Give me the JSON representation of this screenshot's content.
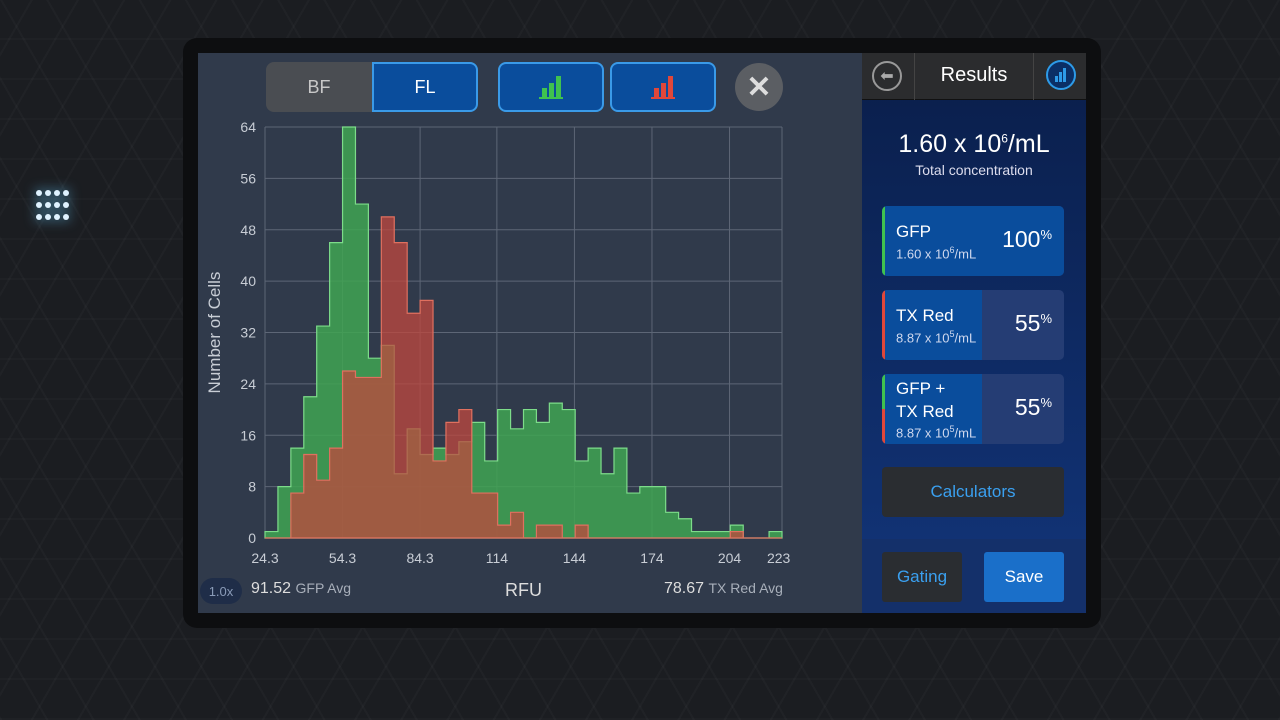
{
  "toolbar": {
    "bf_label": "BF",
    "fl_label": "FL",
    "gfp_hist_icon": "bar-chart-icon",
    "gfp_hist_color": "#3fc24f",
    "red_hist_icon": "bar-chart-icon",
    "red_hist_color": "#e0473a",
    "close_icon": "close-icon"
  },
  "footer": {
    "zoom": "1.0x",
    "gfp_avg_value": "91.52",
    "gfp_avg_label": "GFP Avg",
    "xlabel": "RFU",
    "red_avg_value": "78.67",
    "red_avg_label": "TX Red Avg"
  },
  "panel": {
    "title": "Results",
    "total_main": "1.60 x 10",
    "total_exp": "6",
    "total_unit": "/mL",
    "total_label": "Total concentration",
    "cards": [
      {
        "name": "GFP",
        "conc": "1.60 x 10",
        "exp": "6",
        "unit": "/mL",
        "pct": "100",
        "pct_sign": "%",
        "fraction": 1.0,
        "color": "#3fc24f"
      },
      {
        "name": "TX Red",
        "conc": "8.87 x 10",
        "exp": "5",
        "unit": "/mL",
        "pct": "55",
        "pct_sign": "%",
        "fraction": 0.55,
        "color": "#e0473a"
      },
      {
        "name": "GFP +",
        "name2": "TX Red",
        "conc": "8.87 x 10",
        "exp": "5",
        "unit": "/mL",
        "pct": "55",
        "pct_sign": "%",
        "fraction": 0.55
      }
    ],
    "calculators": "Calculators",
    "gating": "Gating",
    "save": "Save"
  },
  "chart_data": {
    "type": "histogram",
    "xlabel": "RFU",
    "ylabel": "Number of Cells",
    "xlim": [
      24.3,
      224.3
    ],
    "ylim": [
      0,
      64
    ],
    "xticks": [
      24.3,
      54.3,
      84.3,
      114,
      144,
      174,
      204,
      223
    ],
    "xtick_labels": [
      "24.3",
      "54.3",
      "84.3",
      "114",
      "144",
      "174",
      "204",
      "223"
    ],
    "yticks": [
      0,
      8,
      16,
      24,
      32,
      40,
      48,
      56,
      64
    ],
    "grid": true,
    "bin_width": 5,
    "series": [
      {
        "color": "#3fa552",
        "values": [
          1,
          8,
          14,
          22,
          33,
          46,
          64,
          52,
          28,
          30,
          10,
          17,
          13,
          14,
          13,
          15,
          18,
          12,
          20,
          17,
          20,
          18,
          21,
          20,
          12,
          14,
          10,
          14,
          7,
          8,
          8,
          4,
          3,
          1,
          1,
          1,
          2,
          0,
          0,
          1
        ]
      },
      {
        "color": "#c0483e",
        "values": [
          0,
          0,
          7,
          13,
          9,
          14,
          26,
          25,
          25,
          50,
          46,
          35,
          37,
          12,
          18,
          20,
          7,
          7,
          2,
          4,
          0,
          2,
          2,
          0,
          2,
          0,
          0,
          0,
          0,
          0,
          0,
          0,
          0,
          0,
          0,
          0,
          1,
          0,
          0,
          0
        ]
      }
    ]
  }
}
